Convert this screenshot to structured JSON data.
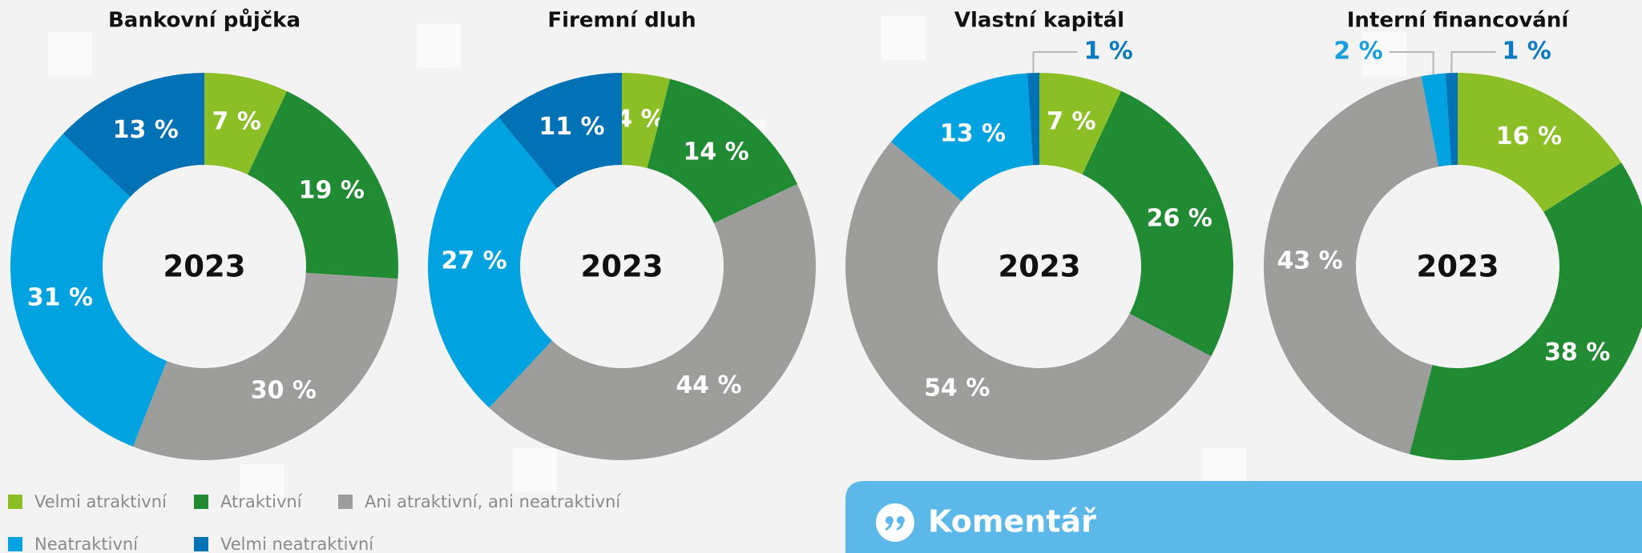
{
  "legend": {
    "labels": [
      "Velmi atraktivní",
      "Atraktivní",
      "Ani atraktivní, ani neatraktivní",
      "Neatraktivní",
      "Velmi neatraktivní"
    ],
    "colors": [
      "#8cbf26",
      "#218b34",
      "#9d9d9c",
      "#00a3e0",
      "#0072b5"
    ]
  },
  "chart_data": [
    {
      "type": "pie",
      "title": "Bankovní půjčka",
      "center_label": "2023",
      "values": [
        7,
        19,
        30,
        31,
        13
      ],
      "value_labels": [
        "7 %",
        "19 %",
        "30 %",
        "31 %",
        "13 %"
      ]
    },
    {
      "type": "pie",
      "title": "Firemní dluh",
      "center_label": "2023",
      "values": [
        4,
        14,
        44,
        27,
        11
      ],
      "value_labels": [
        "4 %",
        "14 %",
        "44 %",
        "27 %",
        "11 %"
      ]
    },
    {
      "type": "pie",
      "title": "Vlastní kapitál",
      "center_label": "2023",
      "values": [
        7,
        26,
        54,
        13,
        1
      ],
      "value_labels": [
        "7 %",
        "26 %",
        "54 %",
        "13 %",
        "1 %"
      ]
    },
    {
      "type": "pie",
      "title": "Interní financování",
      "center_label": "2023",
      "values": [
        16,
        38,
        43,
        2,
        1
      ],
      "value_labels": [
        "16 %",
        "38 %",
        "43 %",
        "2 %",
        "1 %"
      ]
    }
  ],
  "comment": {
    "title": "Komentář"
  }
}
